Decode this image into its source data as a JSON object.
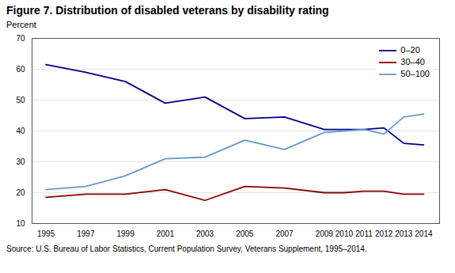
{
  "chart_data": {
    "type": "line",
    "title": "Figure 7. Distribution of disabled veterans by disability rating",
    "y_label": "Percent",
    "source": "Source: U.S. Bureau of Labor Statistics,  Current Population Survey, Veterans Supplement, 1995–2014.",
    "x": [
      1995,
      1997,
      1999,
      2001,
      2003,
      2005,
      2007,
      2009,
      2010,
      2011,
      2012,
      2013,
      2014
    ],
    "series": [
      {
        "name": "0–20",
        "color": "#00008B",
        "values": [
          61.5,
          59.0,
          56.0,
          49.0,
          51.0,
          44.0,
          44.5,
          40.5,
          40.5,
          40.5,
          41.0,
          36.0,
          35.5
        ]
      },
      {
        "name": "30–40",
        "color": "#8B0000",
        "values": [
          18.5,
          19.5,
          19.5,
          21.0,
          17.5,
          22.0,
          21.5,
          20.0,
          20.0,
          20.5,
          20.5,
          19.5,
          19.5
        ]
      },
      {
        "name": "50–100",
        "color": "#6699CC",
        "values": [
          21.0,
          22.0,
          25.5,
          31.0,
          31.5,
          37.0,
          34.0,
          39.5,
          40.0,
          40.5,
          39.0,
          44.5,
          45.5
        ]
      }
    ],
    "xlim": [
      1994.3,
      2014.8
    ],
    "xticks": [
      1995,
      1997,
      1999,
      2001,
      2003,
      2005,
      2007,
      2009,
      2010,
      2011,
      2012,
      2013,
      2014
    ],
    "ylim": [
      10,
      70
    ],
    "yticks": [
      10,
      20,
      30,
      40,
      50,
      60,
      70
    ],
    "grid": true,
    "legend": "upper right"
  }
}
